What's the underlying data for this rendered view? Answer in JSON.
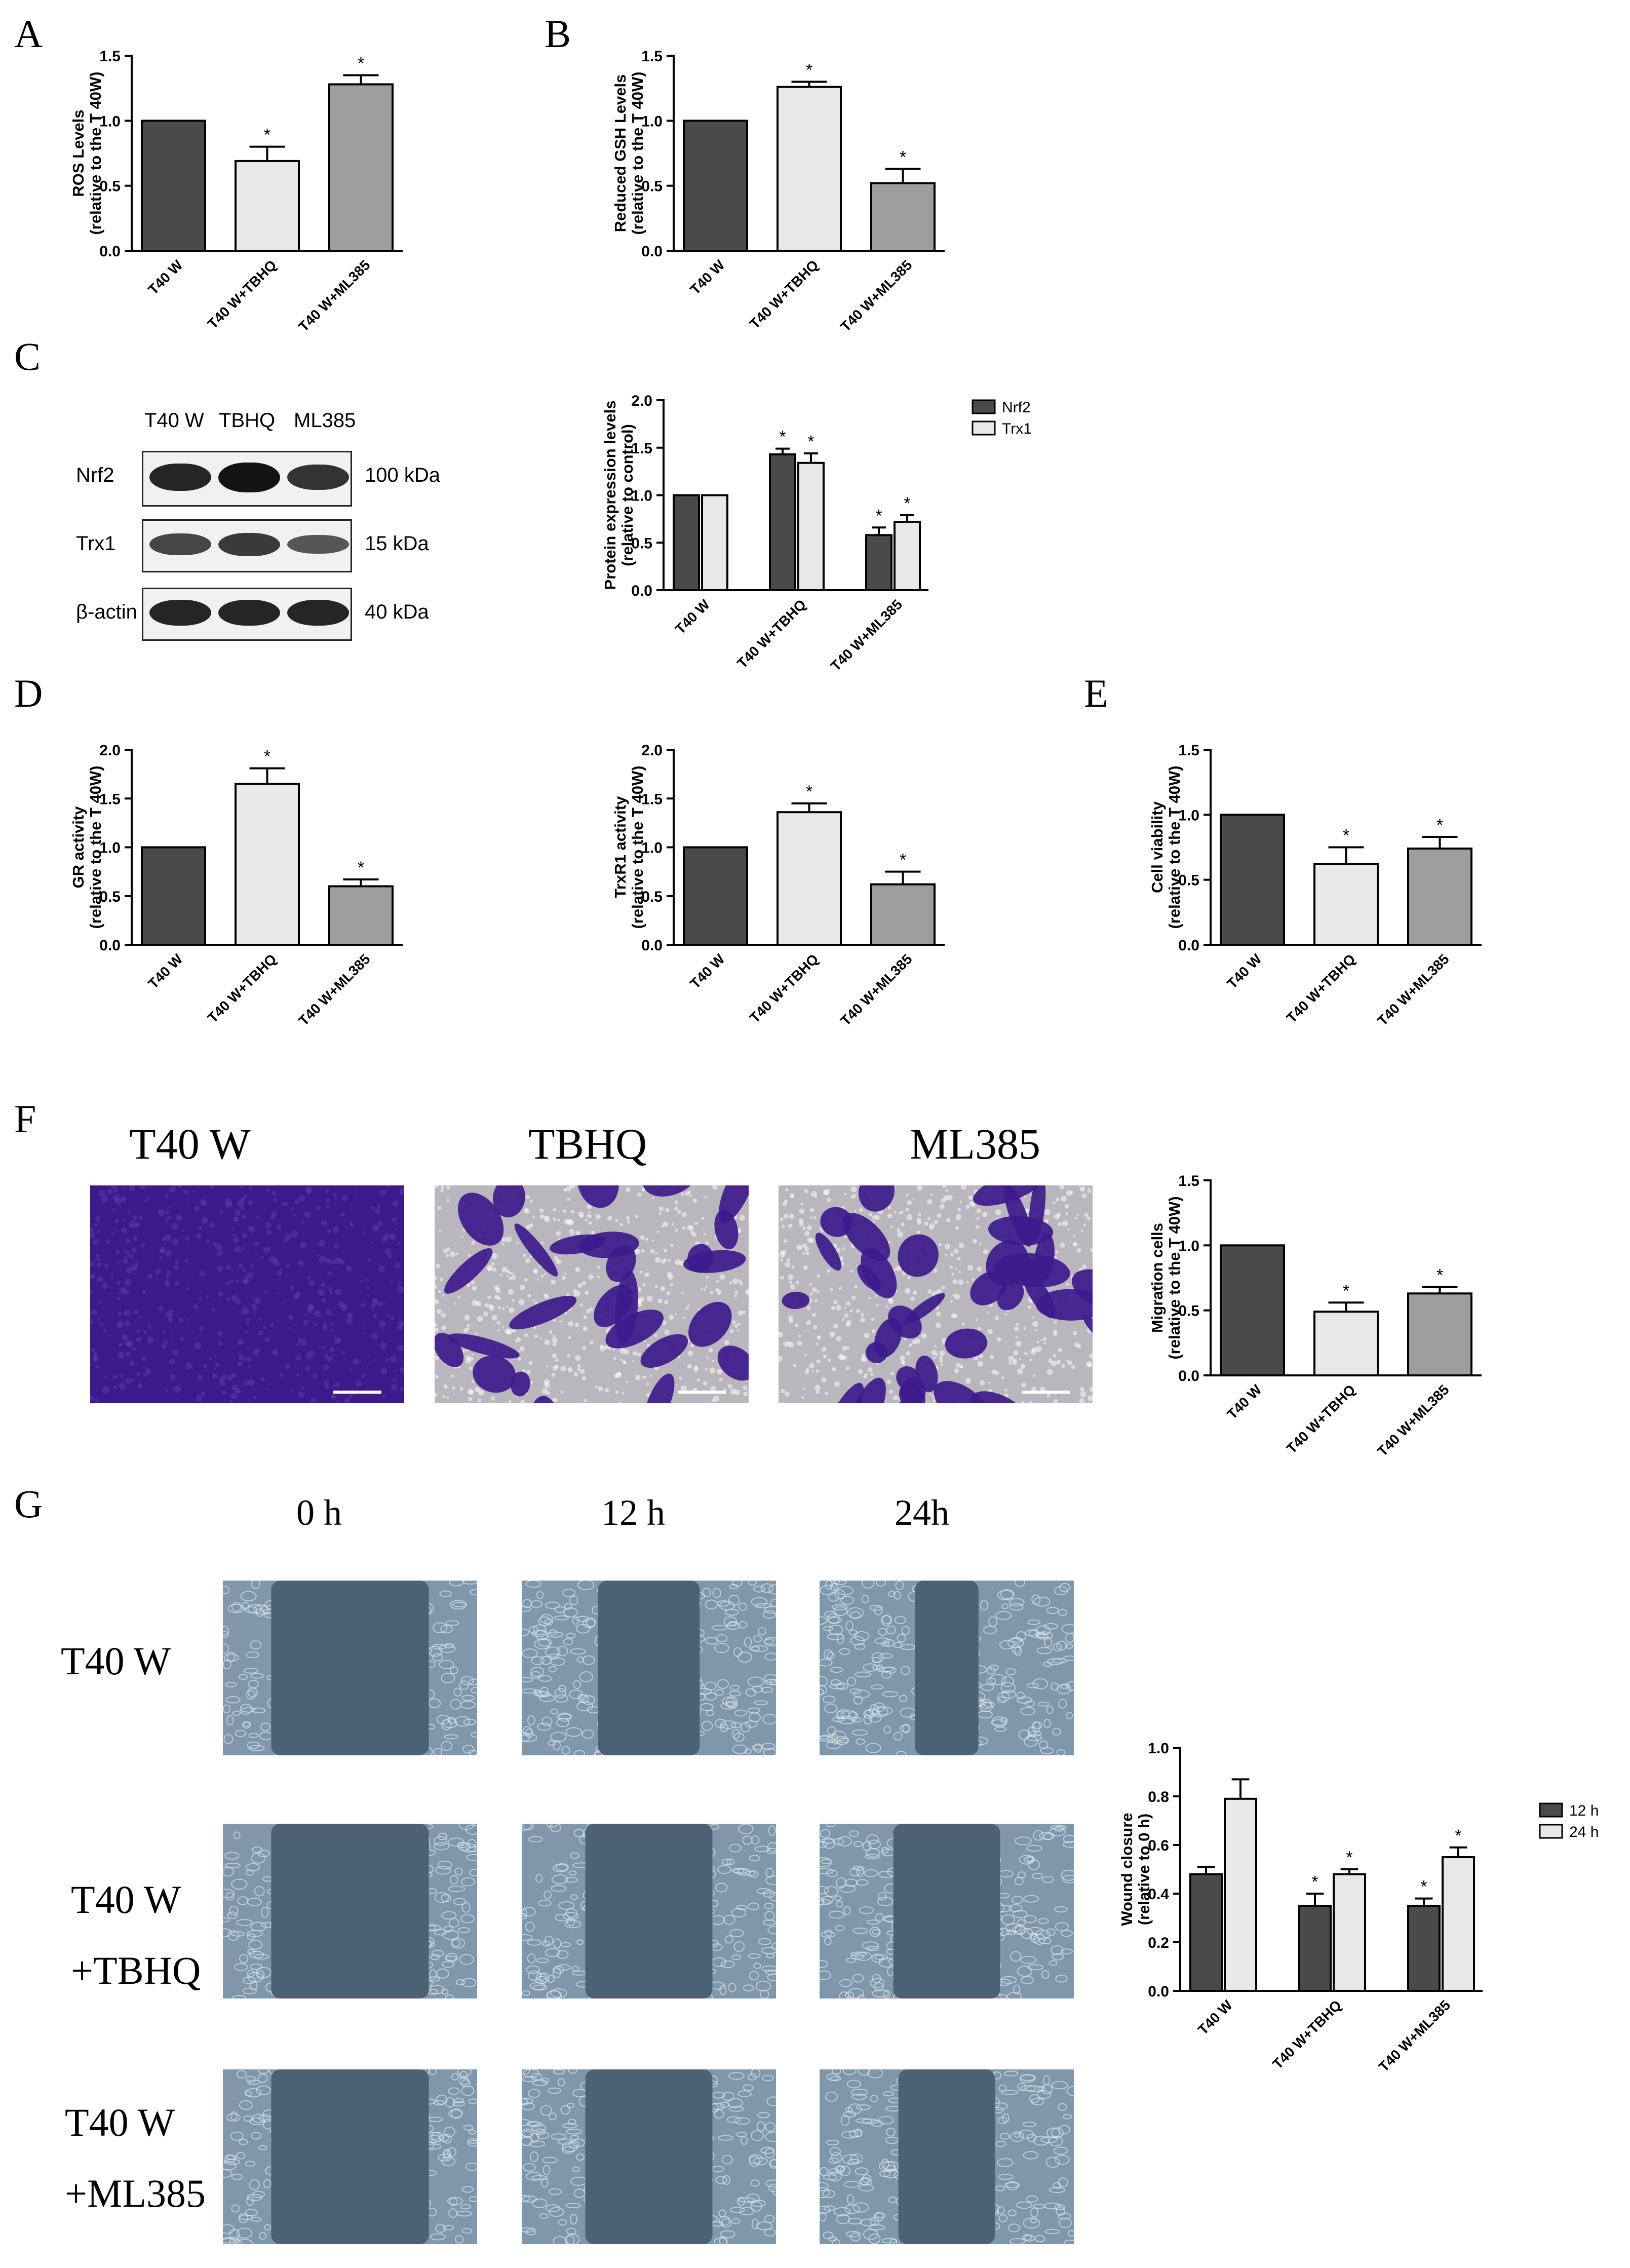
{
  "panels": {
    "A": "A",
    "B": "B",
    "C": "C",
    "D": "D",
    "E": "E",
    "F": "F",
    "G": "G"
  },
  "western_blot": {
    "lane_labels": [
      "T40 W",
      "TBHQ",
      "ML385"
    ],
    "rows": [
      {
        "protein": "Nrf2",
        "size": "100 kDa",
        "intensity": [
          0.85,
          1.0,
          0.75
        ]
      },
      {
        "protein": "Trx1",
        "size": "15 kDa",
        "intensity": [
          0.6,
          0.7,
          0.45
        ]
      },
      {
        "protein": "β-actin",
        "size": "40 kDa",
        "intensity": [
          0.85,
          0.85,
          0.85
        ]
      }
    ],
    "colors": {
      "band": "#141414",
      "background": "#f1f1f1"
    }
  },
  "migration_images": {
    "labels": [
      "T40 W",
      "TBHQ",
      "ML385"
    ],
    "stain_coverage": [
      1.0,
      0.45,
      0.6
    ],
    "colors": {
      "stain": "#3d1a8c",
      "clear": "#b9b6be"
    }
  },
  "wound_images": {
    "time_labels": [
      "0 h",
      "12 h",
      "24h"
    ],
    "row_labels": [
      {
        "line1": "T40 W",
        "line2": ""
      },
      {
        "line1": "T40 W",
        "line2": "+TBHQ"
      },
      {
        "line1": "T40 W",
        "line2": "+ML385"
      }
    ],
    "colors": {
      "gap": "#4b6275",
      "cells": "#7e97aa"
    }
  },
  "colors": {
    "dark_bar": "#4a4a4a",
    "light_bar": "#e8e8e8",
    "mid_bar": "#9e9e9e",
    "axis": "#000000"
  },
  "chart_data": [
    {
      "id": "A",
      "type": "bar",
      "categories": [
        "T40 W",
        "T40 W+TBHQ",
        "T40 W+ML385"
      ],
      "values": [
        1.0,
        0.69,
        1.28
      ],
      "errors": [
        0,
        0.11,
        0.07
      ],
      "significance": [
        "",
        "*",
        "*"
      ],
      "ylabel_lines": [
        "ROS Levels",
        "(relative to the T 40W)"
      ],
      "ylim": [
        0,
        1.5
      ],
      "yticks": [
        "0.0",
        "0.5",
        "1.0",
        "1.5"
      ],
      "ytick_values": [
        0,
        0.5,
        1.0,
        1.5
      ]
    },
    {
      "id": "B",
      "type": "bar",
      "categories": [
        "T40 W",
        "T40 W+TBHQ",
        "T40 W+ML385"
      ],
      "values": [
        1.0,
        1.26,
        0.52
      ],
      "errors": [
        0,
        0.04,
        0.11
      ],
      "significance": [
        "",
        "*",
        "*"
      ],
      "ylabel_lines": [
        "Reduced GSH Levels",
        "(relative to the T 40W)"
      ],
      "ylim": [
        0,
        1.5
      ],
      "yticks": [
        "0.0",
        "0.5",
        "1.0",
        "1.5"
      ],
      "ytick_values": [
        0,
        0.5,
        1.0,
        1.5
      ]
    },
    {
      "id": "C",
      "type": "bar",
      "categories": [
        "T40 W",
        "T40 W+TBHQ",
        "T40 W+ML385"
      ],
      "series": [
        {
          "name": "Nrf2",
          "values": [
            1.0,
            1.43,
            0.58
          ],
          "errors": [
            0,
            0.06,
            0.08
          ],
          "significance": [
            "",
            "*",
            "*"
          ]
        },
        {
          "name": "Trx1",
          "values": [
            1.0,
            1.34,
            0.72
          ],
          "errors": [
            0,
            0.1,
            0.07
          ],
          "significance": [
            "",
            "*",
            "*"
          ]
        }
      ],
      "ylabel_lines": [
        "Protein expression levels",
        "(relative to control)"
      ],
      "ylim": [
        0,
        2.0
      ],
      "yticks": [
        "0.0",
        "0.5",
        "1.0",
        "1.5",
        "2.0"
      ],
      "ytick_values": [
        0,
        0.5,
        1.0,
        1.5,
        2.0
      ]
    },
    {
      "id": "D1",
      "type": "bar",
      "categories": [
        "T40 W",
        "T40 W+TBHQ",
        "T40 W+ML385"
      ],
      "values": [
        1.0,
        1.65,
        0.6
      ],
      "errors": [
        0,
        0.16,
        0.07
      ],
      "significance": [
        "",
        "*",
        "*"
      ],
      "ylabel_lines": [
        "GR activity",
        "(relative to the T 40W)"
      ],
      "ylim": [
        0,
        2.0
      ],
      "yticks": [
        "0.0",
        "0.5",
        "1.0",
        "1.5",
        "2.0"
      ],
      "ytick_values": [
        0,
        0.5,
        1.0,
        1.5,
        2.0
      ]
    },
    {
      "id": "D2",
      "type": "bar",
      "categories": [
        "T40 W",
        "T40 W+TBHQ",
        "T40 W+ML385"
      ],
      "values": [
        1.0,
        1.36,
        0.62
      ],
      "errors": [
        0,
        0.09,
        0.13
      ],
      "significance": [
        "",
        "*",
        "*"
      ],
      "ylabel_lines": [
        "TrxR1 activity",
        "(relative to the T 40W)"
      ],
      "ylim": [
        0,
        2.0
      ],
      "yticks": [
        "0.0",
        "0.5",
        "1.0",
        "1.5",
        "2.0"
      ],
      "ytick_values": [
        0,
        0.5,
        1.0,
        1.5,
        2.0
      ]
    },
    {
      "id": "E",
      "type": "bar",
      "categories": [
        "T40 W",
        "T40 W+TBHQ",
        "T40 W+ML385"
      ],
      "values": [
        1.0,
        0.62,
        0.74
      ],
      "errors": [
        0,
        0.13,
        0.09
      ],
      "significance": [
        "",
        "*",
        "*"
      ],
      "ylabel_lines": [
        "Cell viability",
        "(relative to the T 40W)"
      ],
      "ylim": [
        0,
        1.5
      ],
      "yticks": [
        "0.0",
        "0.5",
        "1.0",
        "1.5"
      ],
      "ytick_values": [
        0,
        0.5,
        1.0,
        1.5
      ]
    },
    {
      "id": "F",
      "type": "bar",
      "categories": [
        "T40 W",
        "T40 W+TBHQ",
        "T40 W+ML385"
      ],
      "values": [
        1.0,
        0.49,
        0.63
      ],
      "errors": [
        0,
        0.07,
        0.05
      ],
      "significance": [
        "",
        "*",
        "*"
      ],
      "ylabel_lines": [
        "Migration cells",
        "(relative to the T 40W)"
      ],
      "ylim": [
        0,
        1.5
      ],
      "yticks": [
        "0.0",
        "0.5",
        "1.0",
        "1.5"
      ],
      "ytick_values": [
        0,
        0.5,
        1.0,
        1.5
      ]
    },
    {
      "id": "G",
      "type": "bar",
      "categories": [
        "T40 W",
        "T40 W+TBHQ",
        "T40 W+ML385"
      ],
      "series": [
        {
          "name": "12 h",
          "values": [
            0.48,
            0.35,
            0.35
          ],
          "errors": [
            0.03,
            0.05,
            0.03
          ],
          "significance": [
            "",
            "*",
            "*"
          ]
        },
        {
          "name": "24 h",
          "values": [
            0.79,
            0.48,
            0.55
          ],
          "errors": [
            0.08,
            0.02,
            0.04
          ],
          "significance": [
            "",
            "*",
            "*"
          ]
        }
      ],
      "ylabel_lines": [
        "Wound closure",
        "(relative to 0 h)"
      ],
      "ylim": [
        0,
        1.0
      ],
      "yticks": [
        "0.0",
        "0.2",
        "0.4",
        "0.6",
        "0.8",
        "1.0"
      ],
      "ytick_values": [
        0,
        0.2,
        0.4,
        0.6,
        0.8,
        1.0
      ]
    }
  ]
}
